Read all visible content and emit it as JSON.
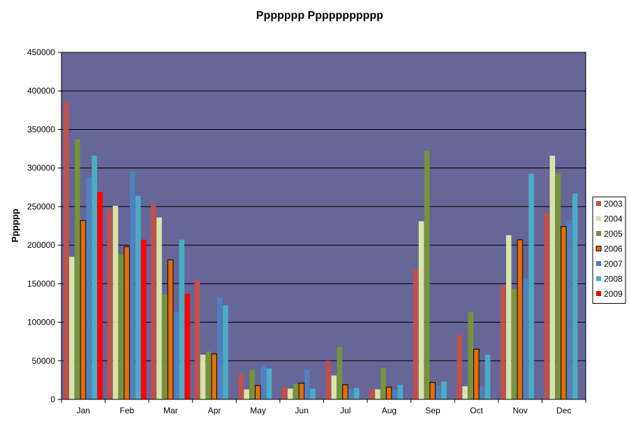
{
  "chart_data": {
    "type": "bar",
    "title": "Ppppppp Ppppppppppp",
    "xlabel": "",
    "ylabel": "Pppppp",
    "ylim": [
      0,
      450000
    ],
    "yticks": [
      0,
      50000,
      100000,
      150000,
      200000,
      250000,
      300000,
      350000,
      400000,
      450000
    ],
    "categories": [
      "Jan",
      "Feb",
      "Mar",
      "Apr",
      "May",
      "Jun",
      "Jul",
      "Aug",
      "Sep",
      "Oct",
      "Nov",
      "Dec"
    ],
    "grid": true,
    "legend_position": "right",
    "plot_background": "#666699",
    "series": [
      {
        "name": "2003",
        "color": "#C0504D",
        "values": [
          385000,
          247000,
          253000,
          155000,
          33000,
          16000,
          50000,
          13000,
          168000,
          84000,
          148000,
          242000
        ]
      },
      {
        "name": "2004",
        "color": "#D7E4A6",
        "values": [
          185000,
          251000,
          236000,
          58000,
          13000,
          14000,
          31000,
          13000,
          231000,
          17000,
          213000,
          316000
        ]
      },
      {
        "name": "2005",
        "color": "#77933C",
        "values": [
          337000,
          188000,
          136000,
          62000,
          38000,
          20000,
          68000,
          41000,
          322000,
          113000,
          143000,
          293000
        ]
      },
      {
        "name": "2006",
        "color": "#E46C0A",
        "values": [
          232000,
          198000,
          181000,
          59000,
          18000,
          21000,
          19000,
          16000,
          22000,
          65000,
          207000,
          224000
        ]
      },
      {
        "name": "2007",
        "color": "#4F81BD",
        "values": [
          288000,
          296000,
          114000,
          132000,
          44000,
          39000,
          14000,
          12000,
          18000,
          16000,
          157000,
          232000
        ]
      },
      {
        "name": "2008",
        "color": "#4BACC6",
        "values": [
          316000,
          264000,
          207000,
          122000,
          40000,
          14000,
          15000,
          19000,
          23000,
          58000,
          293000,
          267000
        ]
      },
      {
        "name": "2009",
        "color": "#FF0000",
        "values": [
          269000,
          207000,
          137000,
          0,
          0,
          0,
          0,
          0,
          0,
          0,
          0,
          0
        ]
      }
    ]
  }
}
